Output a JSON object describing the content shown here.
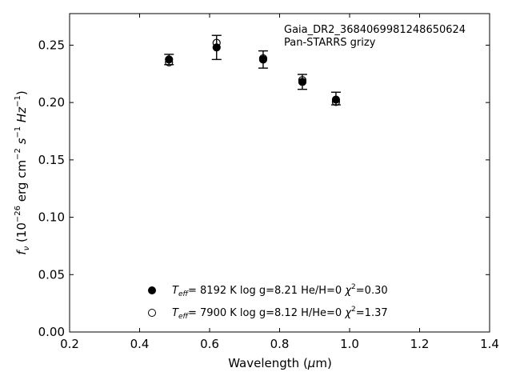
{
  "chart_data": {
    "type": "scatter",
    "annotation": {
      "line1": "Gaia_DR2_3684069981248650624",
      "line2": "Pan-STARRS grizy"
    },
    "xlabel": {
      "main": "Wavelength (",
      "sym": "μ",
      "tail": "m)"
    },
    "ylabel": {
      "f": "f",
      "sub_nu": "ν",
      "pre": " (10",
      "exp": "−26",
      "unit": " erg cm",
      "exp2": "−2",
      "s": " s",
      "exp3": "−1",
      "hz": " Hz",
      "exp4": "−1",
      "close": ")"
    },
    "xlim": [
      0.2,
      1.4
    ],
    "ylim": [
      0.0,
      0.2775
    ],
    "x_ticks": [
      0.2,
      0.4,
      0.6,
      0.8,
      1.0,
      1.2,
      1.4
    ],
    "x_tick_labels": [
      "0.2",
      "0.4",
      "0.6",
      "0.8",
      "1.0",
      "1.2",
      "1.4"
    ],
    "y_ticks": [
      0.0,
      0.05,
      0.1,
      0.15,
      0.2,
      0.25
    ],
    "y_tick_labels": [
      "0.00",
      "0.05",
      "0.10",
      "0.15",
      "0.20",
      "0.25"
    ],
    "grid": false,
    "observed": {
      "x": [
        0.484,
        0.62,
        0.753,
        0.865,
        0.961
      ],
      "y": [
        0.2375,
        0.248,
        0.2375,
        0.218,
        0.2035
      ],
      "yerr": [
        0.0045,
        0.0105,
        0.0075,
        0.0065,
        0.0055
      ]
    },
    "series": [
      {
        "marker": "filled",
        "teff": "8192 K",
        "logg": "log g=8.21",
        "comp": "He/H=0",
        "chi": "=0.30",
        "x": [
          0.484,
          0.62,
          0.753,
          0.865,
          0.961
        ],
        "y": [
          0.2375,
          0.248,
          0.2375,
          0.218,
          0.2025
        ]
      },
      {
        "marker": "open",
        "teff": "7900 K",
        "logg": "log g=8.12",
        "comp": "H/He=0",
        "chi": "=1.37",
        "x": [
          0.484,
          0.62,
          0.753,
          0.865,
          0.961
        ],
        "y": [
          0.235,
          0.252,
          0.2385,
          0.2195,
          0.2005
        ]
      }
    ],
    "legend_placement": "lower-center"
  }
}
